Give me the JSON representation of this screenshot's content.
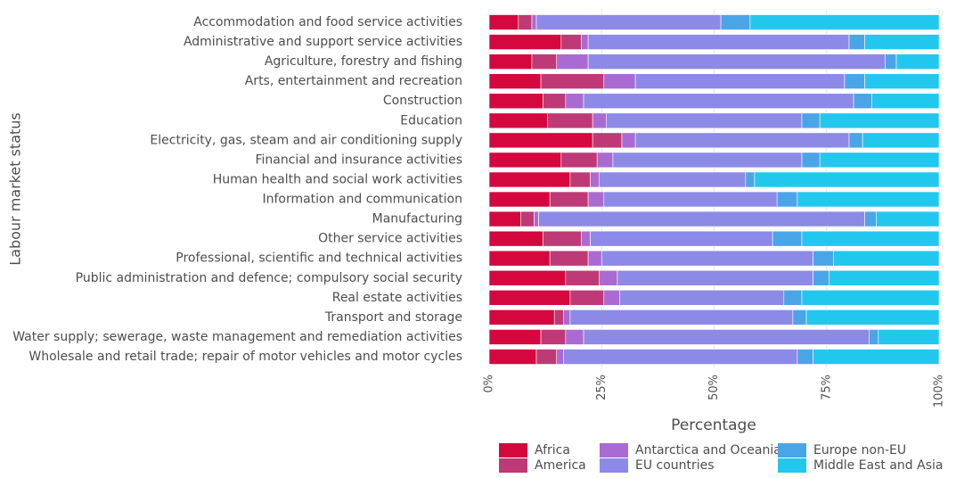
{
  "chart_data": {
    "type": "stacked_barh",
    "y_label": "Labour market status",
    "x_label": "Percentage",
    "categories": [
      "Accommodation and food service activities",
      "Administrative and support service activities",
      "Agriculture, forestry and fishing",
      "Arts, entertainment and recreation",
      "Construction",
      "Education",
      "Electricity, gas, steam and air conditioning supply",
      "Financial and insurance activities",
      "Human health and social work activities",
      "Information and communication",
      "Manufacturing",
      "Other service activities",
      "Professional, scientific and technical activities",
      "Public administration and defence; compulsory social security",
      "Real estate activities",
      "Transport and storage",
      "Water supply; sewerage, waste management and remediation activities",
      "Wholesale and retail trade; repair of motor vehicles and motor cycles"
    ],
    "series": [
      {
        "name": "Africa",
        "color": "#d4083f",
        "values": [
          6.5,
          16,
          9.5,
          11.5,
          12,
          13,
          23,
          16,
          18,
          13.5,
          7,
          12,
          13.5,
          17,
          18,
          14.5,
          11.5,
          10.5
        ]
      },
      {
        "name": "America",
        "color": "#bd3a76",
        "values": [
          3,
          4.5,
          5.5,
          14,
          5,
          10,
          6.5,
          8,
          4.5,
          8.5,
          3,
          8.5,
          8.5,
          7.5,
          7.5,
          2,
          5.5,
          4.5
        ]
      },
      {
        "name": "Antarctica and Oceania",
        "color": "#a96bd2",
        "values": [
          1,
          1.5,
          7,
          7,
          4,
          3,
          3,
          3.5,
          2,
          3.5,
          1,
          2,
          3,
          4,
          3.5,
          1.5,
          4,
          1.5
        ]
      },
      {
        "name": "EU countries",
        "color": "#8c8ae6",
        "values": [
          41,
          58,
          66,
          46.5,
          60,
          43.5,
          47.5,
          42,
          32.5,
          38.5,
          72.5,
          40.5,
          47,
          43.5,
          36.5,
          49.5,
          63.5,
          52
        ]
      },
      {
        "name": "Europe non-EU",
        "color": "#4aa5e7",
        "values": [
          6.5,
          3.5,
          2.5,
          4.5,
          4,
          4,
          3,
          4,
          2,
          4.5,
          2.5,
          6.5,
          4.5,
          3.5,
          4,
          3,
          2,
          3.5
        ]
      },
      {
        "name": "Middle East and Asia",
        "color": "#22c7ee",
        "values": [
          42,
          16.5,
          9.5,
          16.5,
          15,
          26.5,
          17,
          26.5,
          41,
          31.5,
          14,
          30.5,
          23.5,
          24.5,
          30.5,
          29.5,
          13.5,
          28
        ]
      }
    ],
    "xlim": [
      0,
      100
    ],
    "xticks": [
      {
        "value": 0,
        "label": "0%"
      },
      {
        "value": 25,
        "label": "25%"
      },
      {
        "value": 50,
        "label": "50%"
      },
      {
        "value": 75,
        "label": "75%"
      },
      {
        "value": 100,
        "label": "100%"
      }
    ],
    "grid": true
  }
}
